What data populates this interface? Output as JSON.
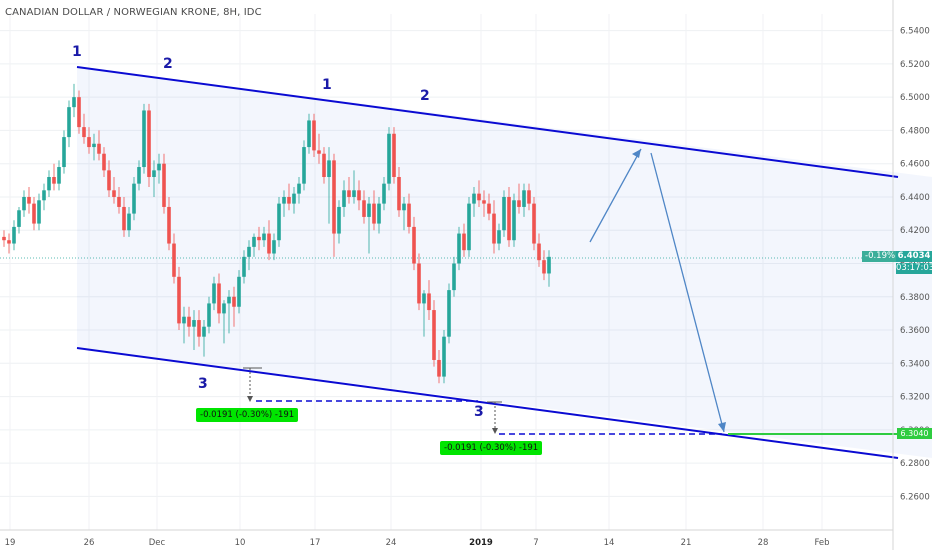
{
  "title": "CANADIAN DOLLAR / NORWEGIAN KRONE, 8H, IDC",
  "colors": {
    "up": "#26a69a",
    "down": "#ef5350",
    "channel": "#0a0ad2",
    "projection": "#4f86c6",
    "measure_fill": "#00e500",
    "target_line": "#2ecc40",
    "channel_fill": "rgba(120,150,230,0.09)"
  },
  "chart_data": {
    "type": "candlestick",
    "title": "CANADIAN DOLLAR / NORWEGIAN KRONE, 8H, IDC",
    "xlabel": "",
    "ylabel": "",
    "ylim": [
      6.25,
      6.55
    ],
    "y_ticks": [
      "6.5400",
      "6.5200",
      "6.5000",
      "6.4800",
      "6.4600",
      "6.4400",
      "6.4200",
      "6.4000",
      "6.3800",
      "6.3600",
      "6.3400",
      "6.3200",
      "6.3000",
      "6.2800",
      "6.2600"
    ],
    "x_ticks": [
      "19",
      "26",
      "Dec",
      "10",
      "17",
      "24",
      "2019",
      "7",
      "14",
      "21",
      "28",
      "Feb"
    ],
    "grid": true,
    "last_price": "6.4034",
    "change_pct": "-0.19%",
    "countdown": "03:17:03",
    "target_price": "6.3040",
    "wave_labels": [
      "1",
      "2",
      "1",
      "2",
      "3",
      "3"
    ],
    "measurements": [
      "-0.0191 (-0.30%) -191",
      "-0.0191 (-0.30%) -191"
    ],
    "candles": [
      [
        6.416,
        6.42,
        6.41,
        6.414
      ],
      [
        6.414,
        6.418,
        6.406,
        6.412
      ],
      [
        6.412,
        6.426,
        6.408,
        6.422
      ],
      [
        6.422,
        6.434,
        6.418,
        6.432
      ],
      [
        6.432,
        6.444,
        6.428,
        6.44
      ],
      [
        6.44,
        6.446,
        6.43,
        6.436
      ],
      [
        6.436,
        6.44,
        6.42,
        6.424
      ],
      [
        6.424,
        6.442,
        6.42,
        6.438
      ],
      [
        6.438,
        6.448,
        6.432,
        6.444
      ],
      [
        6.444,
        6.456,
        6.44,
        6.452
      ],
      [
        6.452,
        6.46,
        6.444,
        6.448
      ],
      [
        6.448,
        6.462,
        6.444,
        6.458
      ],
      [
        6.458,
        6.48,
        6.454,
        6.476
      ],
      [
        6.476,
        6.498,
        6.47,
        6.494
      ],
      [
        6.494,
        6.508,
        6.488,
        6.5
      ],
      [
        6.5,
        6.504,
        6.478,
        6.482
      ],
      [
        6.482,
        6.49,
        6.472,
        6.476
      ],
      [
        6.476,
        6.482,
        6.466,
        6.47
      ],
      [
        6.47,
        6.478,
        6.462,
        6.472
      ],
      [
        6.472,
        6.48,
        6.462,
        6.466
      ],
      [
        6.466,
        6.47,
        6.452,
        6.456
      ],
      [
        6.456,
        6.462,
        6.44,
        6.444
      ],
      [
        6.444,
        6.452,
        6.436,
        6.44
      ],
      [
        6.44,
        6.446,
        6.43,
        6.434
      ],
      [
        6.434,
        6.44,
        6.416,
        6.42
      ],
      [
        6.42,
        6.434,
        6.416,
        6.43
      ],
      [
        6.43,
        6.452,
        6.426,
        6.448
      ],
      [
        6.448,
        6.462,
        6.444,
        6.458
      ],
      [
        6.458,
        6.496,
        6.454,
        6.492
      ],
      [
        6.492,
        6.496,
        6.446,
        6.452
      ],
      [
        6.452,
        6.462,
        6.44,
        6.456
      ],
      [
        6.456,
        6.466,
        6.448,
        6.46
      ],
      [
        6.46,
        6.466,
        6.43,
        6.434
      ],
      [
        6.434,
        6.44,
        6.408,
        6.412
      ],
      [
        6.412,
        6.418,
        6.388,
        6.392
      ],
      [
        6.392,
        6.398,
        6.36,
        6.364
      ],
      [
        6.364,
        6.374,
        6.352,
        6.368
      ],
      [
        6.368,
        6.374,
        6.356,
        6.362
      ],
      [
        6.362,
        6.372,
        6.348,
        6.366
      ],
      [
        6.366,
        6.372,
        6.35,
        6.356
      ],
      [
        6.356,
        6.366,
        6.344,
        6.362
      ],
      [
        6.362,
        6.38,
        6.358,
        6.376
      ],
      [
        6.376,
        6.392,
        6.372,
        6.388
      ],
      [
        6.388,
        6.394,
        6.364,
        6.37
      ],
      [
        6.37,
        6.378,
        6.352,
        6.376
      ],
      [
        6.376,
        6.384,
        6.358,
        6.38
      ],
      [
        6.38,
        6.386,
        6.362,
        6.374
      ],
      [
        6.374,
        6.396,
        6.37,
        6.392
      ],
      [
        6.392,
        6.408,
        6.388,
        6.404
      ],
      [
        6.404,
        6.414,
        6.396,
        6.41
      ],
      [
        6.41,
        6.418,
        6.404,
        6.416
      ],
      [
        6.416,
        6.422,
        6.408,
        6.414
      ],
      [
        6.414,
        6.422,
        6.41,
        6.418
      ],
      [
        6.418,
        6.426,
        6.402,
        6.406
      ],
      [
        6.406,
        6.418,
        6.402,
        6.414
      ],
      [
        6.414,
        6.44,
        6.41,
        6.436
      ],
      [
        6.436,
        6.444,
        6.428,
        6.44
      ],
      [
        6.44,
        6.448,
        6.432,
        6.436
      ],
      [
        6.436,
        6.446,
        6.43,
        6.442
      ],
      [
        6.442,
        6.452,
        6.436,
        6.448
      ],
      [
        6.448,
        6.474,
        6.444,
        6.47
      ],
      [
        6.47,
        6.49,
        6.466,
        6.486
      ],
      [
        6.486,
        6.49,
        6.464,
        6.468
      ],
      [
        6.468,
        6.478,
        6.46,
        6.466
      ],
      [
        6.466,
        6.47,
        6.448,
        6.452
      ],
      [
        6.452,
        6.47,
        6.424,
        6.462
      ],
      [
        6.462,
        6.466,
        6.404,
        6.418
      ],
      [
        6.418,
        6.438,
        6.412,
        6.434
      ],
      [
        6.434,
        6.45,
        6.428,
        6.444
      ],
      [
        6.444,
        6.452,
        6.436,
        6.44
      ],
      [
        6.44,
        6.456,
        6.436,
        6.444
      ],
      [
        6.444,
        6.45,
        6.432,
        6.438
      ],
      [
        6.438,
        6.444,
        6.424,
        6.428
      ],
      [
        6.428,
        6.44,
        6.406,
        6.436
      ],
      [
        6.436,
        6.444,
        6.42,
        6.424
      ],
      [
        6.424,
        6.44,
        6.418,
        6.436
      ],
      [
        6.436,
        6.452,
        6.432,
        6.448
      ],
      [
        6.448,
        6.482,
        6.444,
        6.478
      ],
      [
        6.478,
        6.482,
        6.448,
        6.452
      ],
      [
        6.452,
        6.458,
        6.428,
        6.432
      ],
      [
        6.432,
        6.44,
        6.42,
        6.436
      ],
      [
        6.436,
        6.442,
        6.418,
        6.422
      ],
      [
        6.422,
        6.428,
        6.396,
        6.4
      ],
      [
        6.4,
        6.406,
        6.372,
        6.376
      ],
      [
        6.376,
        6.384,
        6.356,
        6.382
      ],
      [
        6.382,
        6.39,
        6.366,
        6.372
      ],
      [
        6.372,
        6.378,
        6.338,
        6.342
      ],
      [
        6.342,
        6.348,
        6.328,
        6.332
      ],
      [
        6.332,
        6.36,
        6.328,
        6.356
      ],
      [
        6.356,
        6.388,
        6.352,
        6.384
      ],
      [
        6.384,
        6.404,
        6.38,
        6.4
      ],
      [
        6.4,
        6.422,
        6.396,
        6.418
      ],
      [
        6.418,
        6.424,
        6.404,
        6.408
      ],
      [
        6.408,
        6.44,
        6.404,
        6.436
      ],
      [
        6.436,
        6.446,
        6.428,
        6.442
      ],
      [
        6.442,
        6.45,
        6.434,
        6.438
      ],
      [
        6.438,
        6.444,
        6.428,
        6.436
      ],
      [
        6.436,
        6.442,
        6.426,
        6.43
      ],
      [
        6.43,
        6.438,
        6.406,
        6.412
      ],
      [
        6.412,
        6.424,
        6.408,
        6.42
      ],
      [
        6.42,
        6.444,
        6.416,
        6.44
      ],
      [
        6.44,
        6.446,
        6.41,
        6.414
      ],
      [
        6.414,
        6.442,
        6.41,
        6.438
      ],
      [
        6.438,
        6.448,
        6.43,
        6.434
      ],
      [
        6.434,
        6.448,
        6.428,
        6.444
      ],
      [
        6.444,
        6.448,
        6.432,
        6.436
      ],
      [
        6.436,
        6.44,
        6.408,
        6.412
      ],
      [
        6.412,
        6.418,
        6.398,
        6.402
      ],
      [
        6.402,
        6.408,
        6.39,
        6.394
      ],
      [
        6.394,
        6.408,
        6.386,
        6.404
      ]
    ]
  }
}
